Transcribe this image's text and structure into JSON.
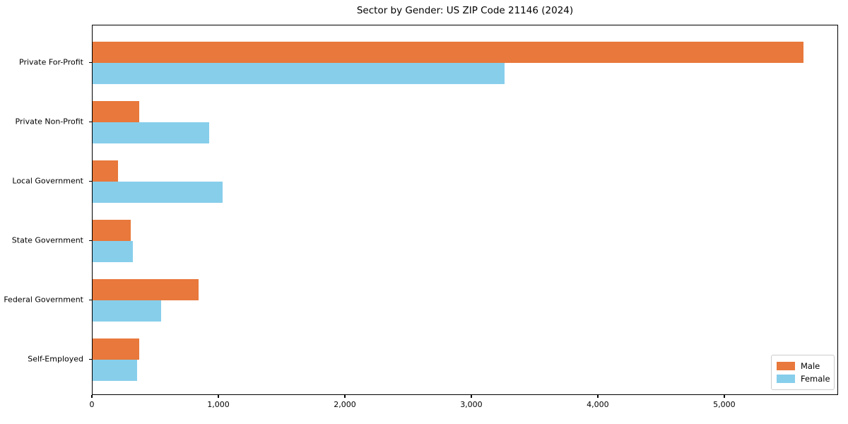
{
  "chart_data": {
    "type": "bar",
    "orientation": "horizontal",
    "title": "Sector by Gender: US ZIP Code 21146 (2024)",
    "categories": [
      "Private For-Profit",
      "Private Non-Profit",
      "Local Government",
      "State Government",
      "Federal Government",
      "Self-Employed"
    ],
    "series": [
      {
        "name": "Male",
        "color": "#e8783b",
        "values": [
          5620,
          370,
          200,
          300,
          840,
          370
        ]
      },
      {
        "name": "Female",
        "color": "#87ceeb",
        "values": [
          3260,
          920,
          1030,
          320,
          540,
          350
        ]
      }
    ],
    "xlabel": "",
    "ylabel": "",
    "xlim": [
      0,
      5900
    ],
    "xticks": [
      0,
      1000,
      2000,
      3000,
      4000,
      5000
    ],
    "xtick_labels": [
      "0",
      "1,000",
      "2,000",
      "3,000",
      "4,000",
      "5,000"
    ],
    "grid": false,
    "legend": {
      "position": "lower right",
      "entries": [
        {
          "label": "Male",
          "color": "#e8783b"
        },
        {
          "label": "Female",
          "color": "#87ceeb"
        }
      ]
    }
  },
  "colors": {
    "male": "#e8783b",
    "female": "#87ceeb",
    "axis": "#000000",
    "background": "#ffffff",
    "legend_border": "#cccccc"
  }
}
